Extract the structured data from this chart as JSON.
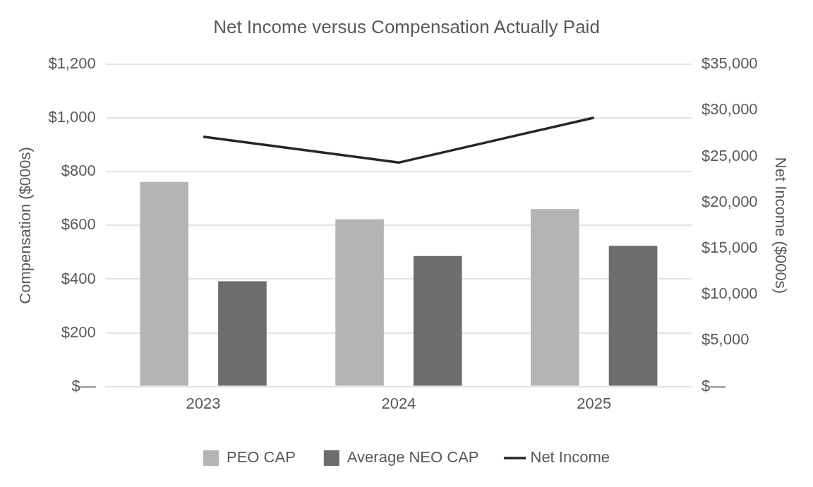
{
  "chart_data": {
    "type": "bar",
    "title": "Net Income versus Compensation Actually Paid",
    "ylabel": "Compensation ($000s)",
    "y2label": "Net Income ($000s)",
    "categories": [
      "2023",
      "2024",
      "2025"
    ],
    "series": [
      {
        "name": "PEO CAP",
        "color": "#b4b4b4",
        "values": [
          762,
          623,
          661
        ]
      },
      {
        "name": "Average NEO CAP",
        "color": "#6d6d6d",
        "values": [
          392,
          486,
          524
        ]
      },
      {
        "name": "Net Income",
        "color": "#262626",
        "type": "line",
        "axis": "y2",
        "values": [
          27130,
          24330,
          29210
        ]
      }
    ],
    "ylim": [
      0,
      1200
    ],
    "yticks": [
      {
        "value": 0,
        "label": "$—"
      },
      {
        "value": 200,
        "label": "$200"
      },
      {
        "value": 400,
        "label": "$400"
      },
      {
        "value": 600,
        "label": "$600"
      },
      {
        "value": 800,
        "label": "$800"
      },
      {
        "value": 1000,
        "label": "$1,000"
      },
      {
        "value": 1200,
        "label": "$1,200"
      }
    ],
    "y2lim": [
      0,
      35000
    ],
    "y2ticks": [
      {
        "value": 0,
        "label": "$—"
      },
      {
        "value": 5000,
        "label": "$5,000"
      },
      {
        "value": 10000,
        "label": "$10,000"
      },
      {
        "value": 15000,
        "label": "$15,000"
      },
      {
        "value": 20000,
        "label": "$20,000"
      },
      {
        "value": 25000,
        "label": "$25,000"
      },
      {
        "value": 30000,
        "label": "$30,000"
      },
      {
        "value": 35000,
        "label": "$35,000"
      }
    ],
    "grid": "y",
    "legend": "bottom",
    "marker": "none",
    "line_style": "solid"
  }
}
